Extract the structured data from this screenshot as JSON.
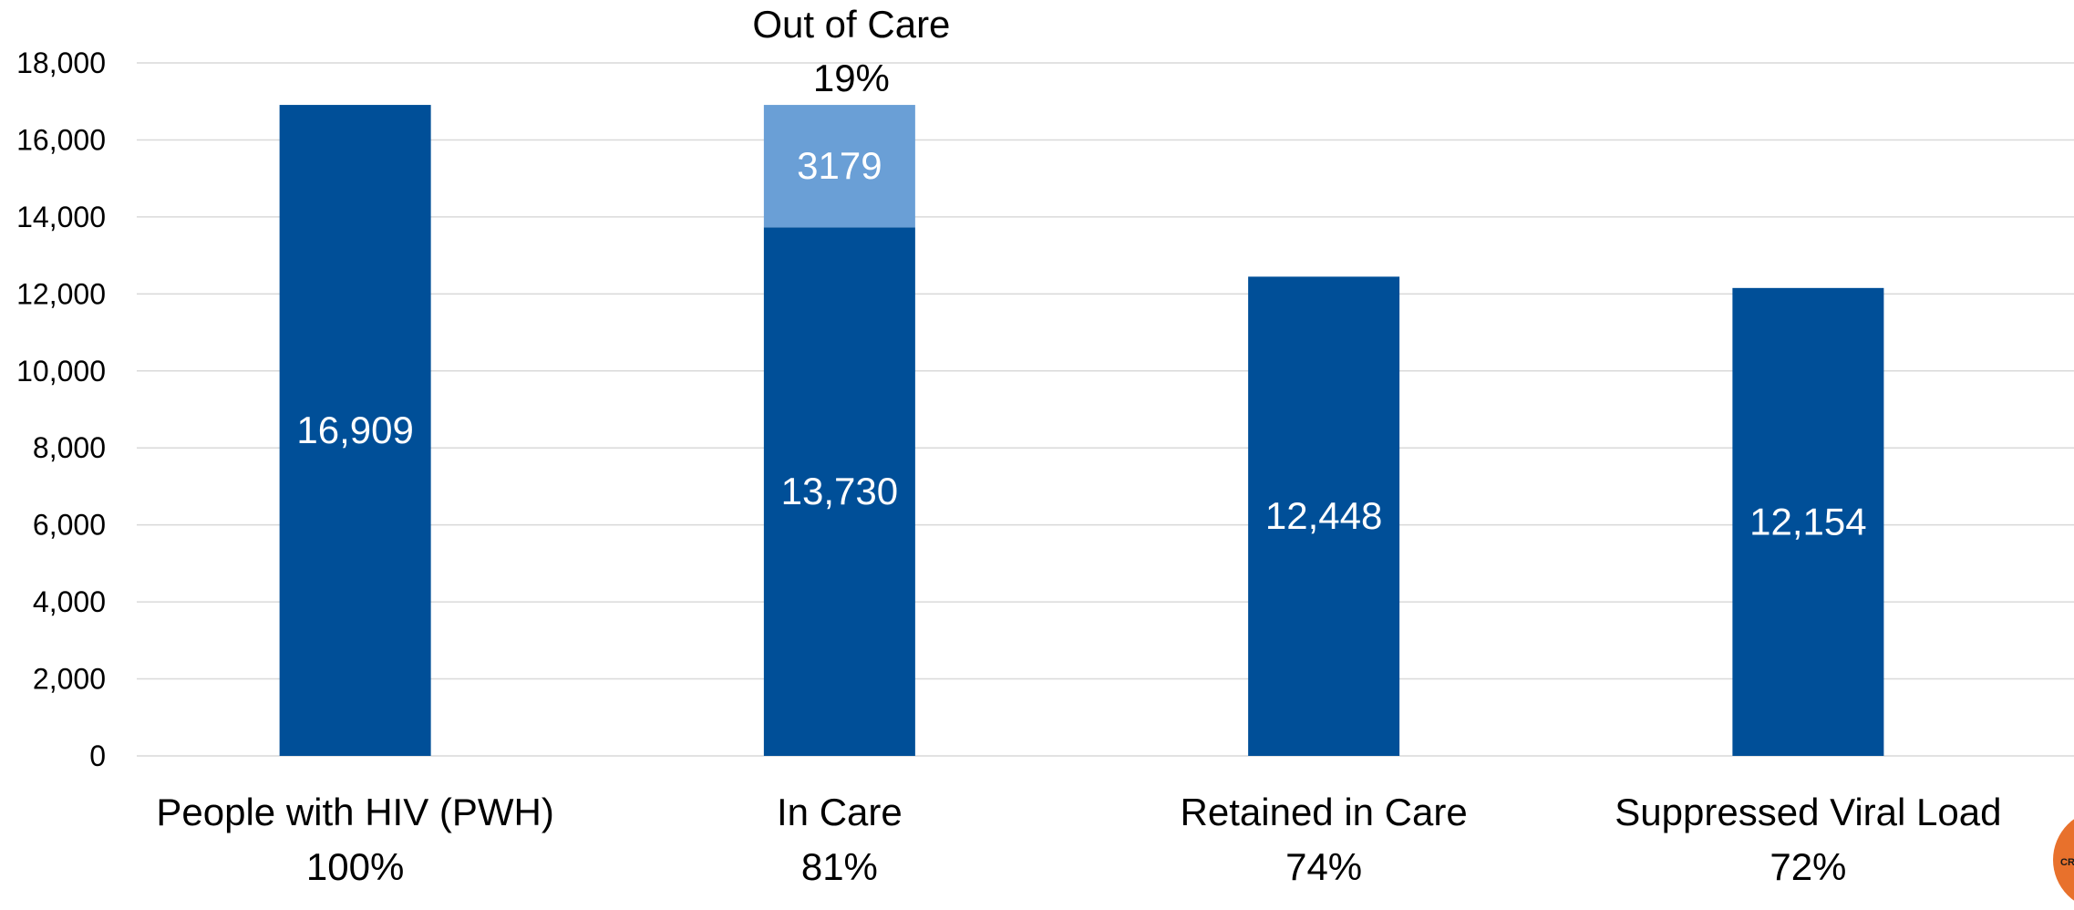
{
  "chart_data": {
    "type": "bar",
    "stacked": true,
    "categories": [
      "People with HIV (PWH)",
      "In Care",
      "Retained in Care",
      "Suppressed Viral Load"
    ],
    "percent_labels": [
      "100%",
      "81%",
      "74%",
      "72%"
    ],
    "series": [
      {
        "values": [
          16909,
          13730,
          12448,
          12154
        ],
        "labels": [
          "16,909",
          "13,730",
          "12,448",
          "12,154"
        ],
        "color": "#004f98"
      },
      {
        "values": [
          0,
          3179,
          0,
          0
        ],
        "labels": [
          "",
          "3179",
          "",
          ""
        ],
        "color": "#6a9fd6"
      }
    ],
    "annotation": {
      "category": "In Care",
      "title": "Out of Care",
      "percent": "19%"
    },
    "yticks": [
      0,
      2000,
      4000,
      6000,
      8000,
      10000,
      12000,
      14000,
      16000,
      18000
    ],
    "ytick_labels": [
      "0",
      "2,000",
      "4,000",
      "6,000",
      "8,000",
      "10,000",
      "12,000",
      "14,000",
      "16,000",
      "18,000"
    ],
    "ylim": [
      0,
      18000
    ],
    "grid": true,
    "legend": "none",
    "colors": {
      "grid": "#d9d9d9",
      "text": "#000000",
      "data_label": "#ffffff"
    }
  },
  "logo": {
    "text": "CR",
    "color": "#e8712c"
  }
}
